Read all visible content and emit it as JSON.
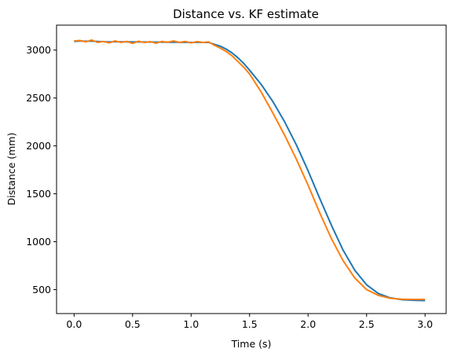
{
  "chart_data": {
    "type": "line",
    "title": "Distance vs. KF estimate",
    "xlabel": "Time (s)",
    "ylabel": "Distance (mm)",
    "xlim": [
      -0.15,
      3.18
    ],
    "ylim": [
      250,
      3260
    ],
    "xticks": [
      0.0,
      0.5,
      1.0,
      1.5,
      2.0,
      2.5,
      3.0
    ],
    "xtick_labels": [
      "0.0",
      "0.5",
      "1.0",
      "1.5",
      "2.0",
      "2.5",
      "3.0"
    ],
    "yticks": [
      500,
      1000,
      1500,
      2000,
      2500,
      3000
    ],
    "ytick_labels": [
      "500",
      "1000",
      "1500",
      "2000",
      "2500",
      "3000"
    ],
    "grid": false,
    "series": [
      {
        "color": "#1f77b4",
        "x": [
          0.0,
          0.05,
          0.1,
          0.15,
          0.2,
          0.25,
          0.3,
          0.35,
          0.4,
          0.45,
          0.5,
          0.55,
          0.6,
          0.65,
          0.7,
          0.75,
          0.8,
          0.85,
          0.9,
          0.95,
          1.0,
          1.05,
          1.1,
          1.15,
          1.2,
          1.25,
          1.3,
          1.35,
          1.4,
          1.45,
          1.5,
          1.6,
          1.7,
          1.8,
          1.9,
          2.0,
          2.1,
          2.2,
          2.3,
          2.4,
          2.5,
          2.6,
          2.7,
          2.8,
          2.9,
          3.0
        ],
        "y": [
          3090,
          3095,
          3092,
          3094,
          3090,
          3088,
          3085,
          3088,
          3086,
          3087,
          3085,
          3086,
          3084,
          3085,
          3083,
          3084,
          3082,
          3083,
          3081,
          3082,
          3080,
          3081,
          3080,
          3080,
          3060,
          3040,
          3010,
          2970,
          2920,
          2860,
          2790,
          2640,
          2460,
          2250,
          2010,
          1740,
          1450,
          1170,
          910,
          700,
          550,
          460,
          415,
          395,
          388,
          385
        ]
      },
      {
        "color": "#ff7f0e",
        "x": [
          0.0,
          0.05,
          0.1,
          0.15,
          0.2,
          0.25,
          0.3,
          0.35,
          0.4,
          0.45,
          0.5,
          0.55,
          0.6,
          0.65,
          0.7,
          0.75,
          0.8,
          0.85,
          0.9,
          0.95,
          1.0,
          1.05,
          1.1,
          1.15,
          1.2,
          1.25,
          1.3,
          1.35,
          1.4,
          1.45,
          1.5,
          1.6,
          1.7,
          1.8,
          1.9,
          2.0,
          2.1,
          2.2,
          2.3,
          2.4,
          2.5,
          2.6,
          2.7,
          2.8,
          2.9,
          3.0
        ],
        "y": [
          3095,
          3100,
          3085,
          3105,
          3080,
          3090,
          3075,
          3095,
          3080,
          3090,
          3070,
          3092,
          3078,
          3088,
          3072,
          3090,
          3082,
          3095,
          3080,
          3090,
          3075,
          3088,
          3080,
          3085,
          3050,
          3020,
          2985,
          2940,
          2880,
          2820,
          2750,
          2560,
          2340,
          2110,
          1860,
          1590,
          1300,
          1030,
          800,
          620,
          500,
          440,
          410,
          400,
          398,
          398
        ]
      }
    ]
  }
}
